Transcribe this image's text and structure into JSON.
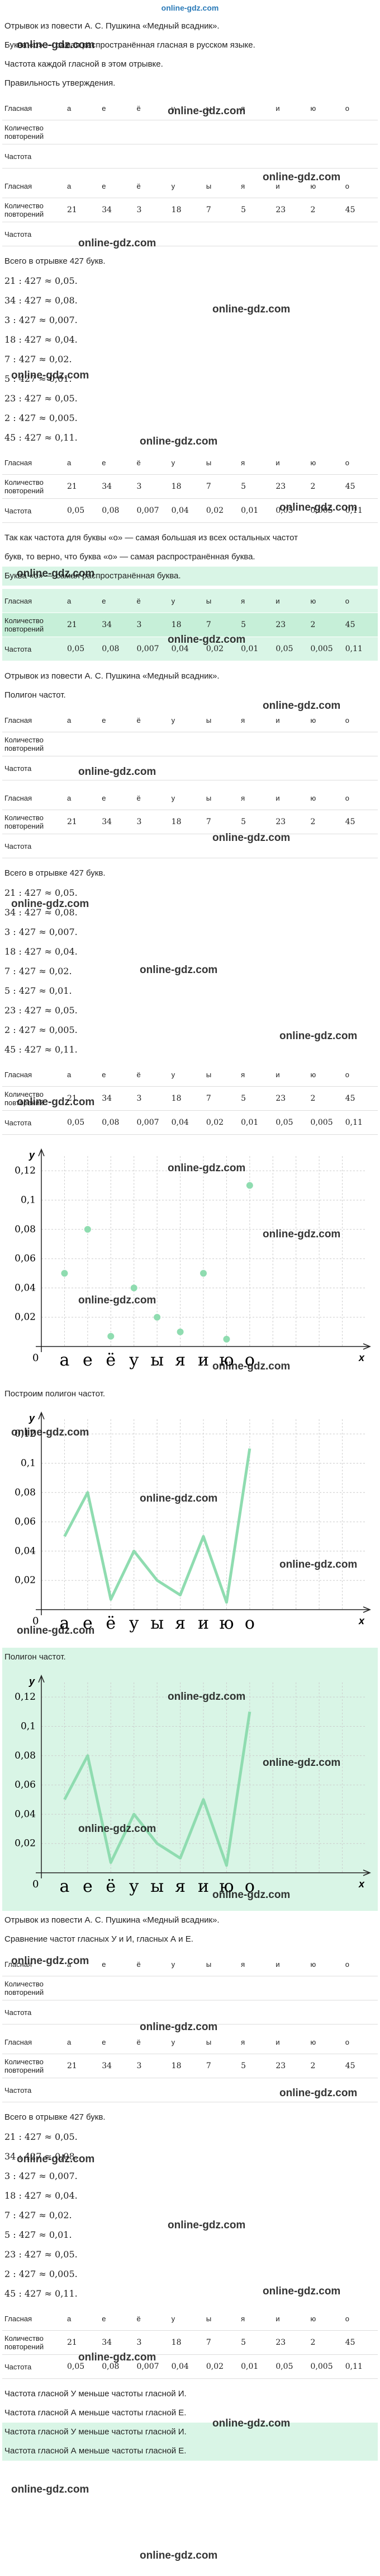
{
  "logo": "online-gdz.com",
  "watermark": "online-gdz.com",
  "blocks": [
    {
      "type": "text",
      "text": "Отрывок из повести А. С. Пушкина «Медный всадник»."
    },
    {
      "type": "text",
      "text": "Буква «о» — самая распространённая гласная в русском языке."
    },
    {
      "type": "text",
      "text": "Частота каждой гласной в этом отрывке."
    },
    {
      "type": "text",
      "text": "Правильность утверждения."
    },
    {
      "type": "table",
      "rows": [
        [
          "Гласная",
          "а",
          "е",
          "ё",
          "у",
          "ы",
          "я",
          "и",
          "ю",
          "о"
        ],
        [
          "Количество повторений"
        ],
        [
          "Частота"
        ]
      ]
    },
    {
      "type": "table",
      "rows": [
        [
          "Гласная",
          "а",
          "е",
          "ё",
          "у",
          "ы",
          "я",
          "и",
          "ю",
          "о"
        ],
        [
          "Количество повторений",
          21,
          34,
          3,
          18,
          7,
          5,
          23,
          2,
          45
        ],
        [
          "Частота"
        ]
      ]
    },
    {
      "type": "text",
      "text": "Всего в отрывке 427 букв."
    },
    {
      "type": "lines",
      "lines": [
        "21 : 427 ≈ 0,05.",
        "34 : 427 ≈ 0,08.",
        "3 : 427 ≈ 0,007.",
        "18 : 427 ≈ 0,04.",
        "7 : 427 ≈ 0,02.",
        "5 : 427 ≈ 0,01.",
        "23 : 427 ≈ 0,05.",
        "2 : 427 ≈ 0,005.",
        "45 : 427 ≈ 0,11."
      ]
    },
    {
      "type": "table",
      "rows": [
        [
          "Гласная",
          "а",
          "е",
          "ё",
          "у",
          "ы",
          "я",
          "и",
          "ю",
          "о"
        ],
        [
          "Количество повторений",
          21,
          34,
          3,
          18,
          7,
          5,
          23,
          2,
          45
        ],
        [
          "Частота",
          "0,05",
          "0,08",
          "0,007",
          "0,04",
          "0,02",
          "0,01",
          "0,05",
          "0,005",
          "0,11"
        ]
      ]
    },
    {
      "type": "text",
      "text": "Так как частота для буквы «о» — самая большая из всех остальных частот"
    },
    {
      "type": "text",
      "text": "букв, то верно, что буква «о» — самая распространённая буква."
    },
    {
      "type": "text",
      "highlight": true,
      "text": "Буква «о» — самая распространённая буква."
    },
    {
      "type": "table",
      "highlight": true,
      "rows": [
        [
          "Гласная",
          "а",
          "е",
          "ё",
          "у",
          "ы",
          "я",
          "и",
          "ю",
          "о"
        ],
        [
          "Количество повторений",
          21,
          34,
          3,
          18,
          7,
          5,
          23,
          2,
          45
        ],
        [
          "Частота",
          "0,05",
          "0,08",
          "0,007",
          "0,04",
          "0,02",
          "0,01",
          "0,05",
          "0,005",
          "0,11"
        ]
      ]
    },
    {
      "type": "text",
      "text": "Отрывок из повести А. С. Пушкина «Медный всадник»."
    },
    {
      "type": "text",
      "text": "Полигон частот."
    },
    {
      "type": "table",
      "rows": [
        [
          "Гласная",
          "а",
          "е",
          "ё",
          "у",
          "ы",
          "я",
          "и",
          "ю",
          "о"
        ],
        [
          "Количество повторений"
        ],
        [
          "Частота"
        ]
      ]
    },
    {
      "type": "table",
      "rows": [
        [
          "Гласная",
          "а",
          "е",
          "ё",
          "у",
          "ы",
          "я",
          "и",
          "ю",
          "о"
        ],
        [
          "Количество повторений",
          21,
          34,
          3,
          18,
          7,
          5,
          23,
          2,
          45
        ],
        [
          "Частота"
        ]
      ]
    },
    {
      "type": "text",
      "text": "Всего в отрывке 427 букв."
    },
    {
      "type": "lines",
      "lines": [
        "21 : 427 ≈ 0,05.",
        "34 : 427 ≈ 0,08.",
        "3 : 427 ≈ 0,007.",
        "18 : 427 ≈ 0,04.",
        "7 : 427 ≈ 0,02.",
        "5 : 427 ≈ 0,01.",
        "23 : 427 ≈ 0,05.",
        "2 : 427 ≈ 0,005.",
        "45 : 427 ≈ 0,11."
      ]
    },
    {
      "type": "table",
      "rows": [
        [
          "Гласная",
          "а",
          "е",
          "ё",
          "у",
          "ы",
          "я",
          "и",
          "ю",
          "о"
        ],
        [
          "Количество повторений",
          21,
          34,
          3,
          18,
          7,
          5,
          23,
          2,
          45
        ],
        [
          "Частота",
          "0,05",
          "0,08",
          "0,007",
          "0,04",
          "0,02",
          "0,01",
          "0,05",
          "0,005",
          "0,11"
        ]
      ]
    },
    {
      "type": "chart",
      "chart": {
        "type": "scatter",
        "categories": [
          "а",
          "е",
          "ё",
          "у",
          "ы",
          "я",
          "и",
          "ю",
          "о"
        ],
        "values": [
          0.05,
          0.08,
          0.007,
          0.04,
          0.02,
          0.01,
          0.05,
          0.005,
          0.11
        ],
        "color": "#8fdcb0",
        "ylim": [
          0,
          0.13
        ],
        "yticks": [
          {
            "value": 0.02,
            "label": "0,02"
          },
          {
            "value": 0.04,
            "label": "0,04"
          },
          {
            "value": 0.06,
            "label": "0,06"
          },
          {
            "value": 0.08,
            "label": "0,08"
          },
          {
            "value": 0.1,
            "label": "0,1"
          },
          {
            "value": 0.12,
            "label": "0,12"
          }
        ],
        "xlabel": "x",
        "ylabel": "y",
        "origin": "0",
        "grid": true
      }
    },
    {
      "type": "text",
      "text": "Построим полигон частот."
    },
    {
      "type": "chart",
      "chart": {
        "type": "line",
        "categories": [
          "а",
          "е",
          "ё",
          "у",
          "ы",
          "я",
          "и",
          "ю",
          "о"
        ],
        "values": [
          0.05,
          0.08,
          0.007,
          0.04,
          0.02,
          0.01,
          0.05,
          0.005,
          0.11
        ],
        "color": "#8fdcb0",
        "ylim": [
          0,
          0.13
        ],
        "yticks": [
          {
            "value": 0.02,
            "label": "0,02"
          },
          {
            "value": 0.04,
            "label": "0,04"
          },
          {
            "value": 0.06,
            "label": "0,06"
          },
          {
            "value": 0.08,
            "label": "0,08"
          },
          {
            "value": 0.1,
            "label": "0,1"
          },
          {
            "value": 0.12,
            "label": "0,12"
          }
        ],
        "xlabel": "x",
        "ylabel": "y",
        "origin": "0",
        "grid": true
      }
    },
    {
      "type": "text",
      "highlight": true,
      "text": "Полигон частот."
    },
    {
      "type": "chart",
      "highlight": true,
      "chart": {
        "type": "line",
        "categories": [
          "а",
          "е",
          "ё",
          "у",
          "ы",
          "я",
          "и",
          "ю",
          "о"
        ],
        "values": [
          0.05,
          0.08,
          0.007,
          0.04,
          0.02,
          0.01,
          0.05,
          0.005,
          0.11
        ],
        "color": "#8fdcb0",
        "ylim": [
          0,
          0.13
        ],
        "yticks": [
          {
            "value": 0.02,
            "label": "0,02"
          },
          {
            "value": 0.04,
            "label": "0,04"
          },
          {
            "value": 0.06,
            "label": "0,06"
          },
          {
            "value": 0.08,
            "label": "0,08"
          },
          {
            "value": 0.1,
            "label": "0,1"
          },
          {
            "value": 0.12,
            "label": "0,12"
          }
        ],
        "xlabel": "x",
        "ylabel": "y",
        "origin": "0",
        "grid": true
      }
    },
    {
      "type": "text",
      "text": "Отрывок из повести А. С. Пушкина «Медный всадник»."
    },
    {
      "type": "text",
      "text": "Сравнение частот гласных У и И, гласных А и Е."
    },
    {
      "type": "table",
      "rows": [
        [
          "Гласная",
          "а",
          "е",
          "ё",
          "у",
          "ы",
          "я",
          "и",
          "ю",
          "о"
        ],
        [
          "Количество повторений"
        ],
        [
          "Частота"
        ]
      ]
    },
    {
      "type": "table",
      "rows": [
        [
          "Гласная",
          "а",
          "е",
          "ё",
          "у",
          "ы",
          "я",
          "и",
          "ю",
          "о"
        ],
        [
          "Количество повторений",
          21,
          34,
          3,
          18,
          7,
          5,
          23,
          2,
          45
        ],
        [
          "Частота"
        ]
      ]
    },
    {
      "type": "text",
      "text": "Всего в отрывке 427 букв."
    },
    {
      "type": "lines",
      "lines": [
        "21 : 427 ≈ 0,05.",
        "34 : 427 ≈ 0,08.",
        "3 : 427 ≈ 0,007.",
        "18 : 427 ≈ 0,04.",
        "7 : 427 ≈ 0,02.",
        "5 : 427 ≈ 0,01.",
        "23 : 427 ≈ 0,05.",
        "2 : 427 ≈ 0,005.",
        "45 : 427 ≈ 0,11."
      ]
    },
    {
      "type": "table",
      "rows": [
        [
          "Гласная",
          "а",
          "е",
          "ё",
          "у",
          "ы",
          "я",
          "и",
          "ю",
          "о"
        ],
        [
          "Количество повторений",
          21,
          34,
          3,
          18,
          7,
          5,
          23,
          2,
          45
        ],
        [
          "Частота",
          "0,05",
          "0,08",
          "0,007",
          "0,04",
          "0,02",
          "0,01",
          "0,05",
          "0,005",
          "0,11"
        ]
      ]
    },
    {
      "type": "text",
      "text": "Частота гласной У меньше частоты гласной И."
    },
    {
      "type": "text",
      "text": "Частота гласной А меньше частоты гласной Е."
    },
    {
      "type": "text",
      "highlight": true,
      "text": "Частота гласной У меньше частоты гласной И."
    },
    {
      "type": "text",
      "highlight": true,
      "text": "Частота гласной А меньше частоты гласной Е."
    }
  ]
}
